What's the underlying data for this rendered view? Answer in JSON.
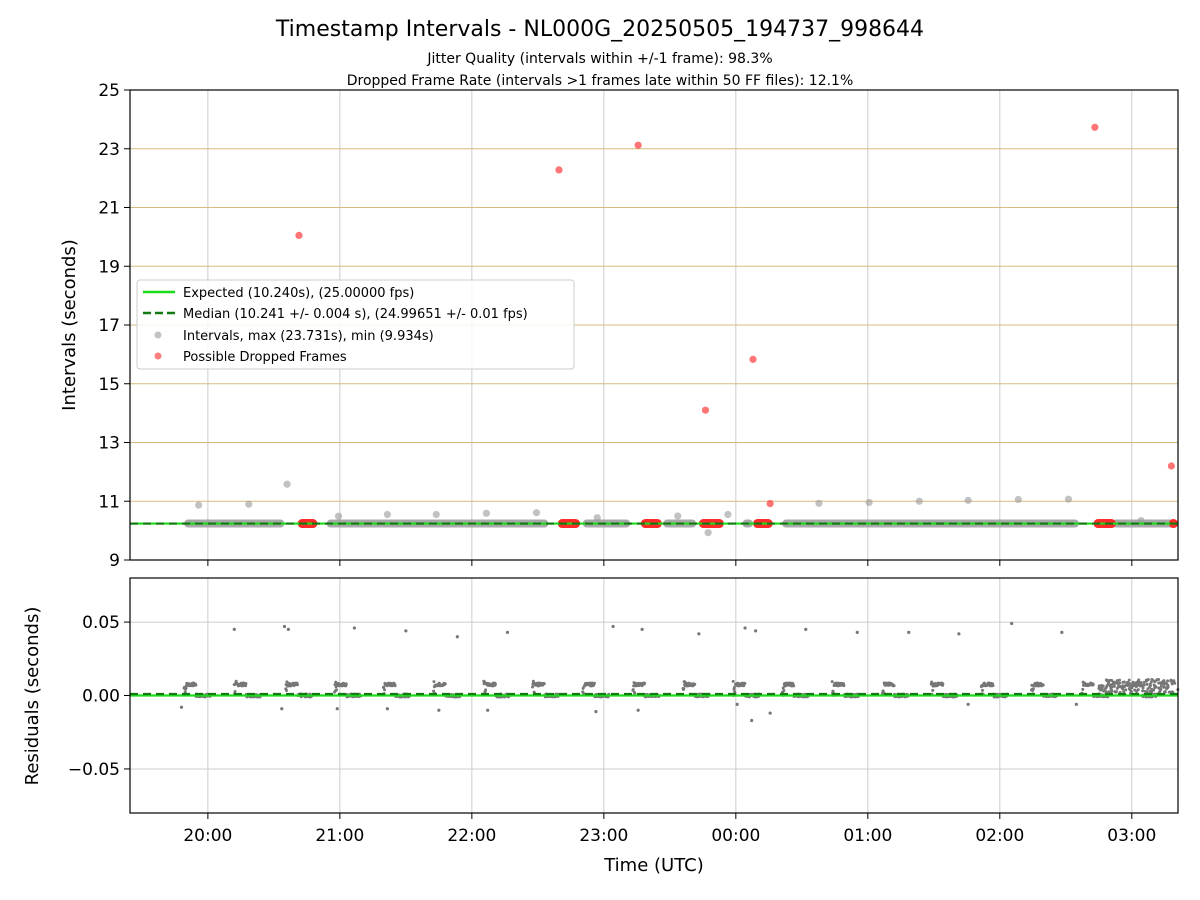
{
  "chart_data": [
    {
      "type": "scatter",
      "panel": "intervals",
      "title": "Timestamp Intervals - NL000G_20250505_194737_998644",
      "subtitle_lines": [
        "Jitter Quality (intervals within +/-1 frame): 98.3%",
        "Dropped Frame Rate (intervals >1 frames late within 50 FF files): 12.1%"
      ],
      "xlabel": "Time (UTC)",
      "ylabel": "Intervals (seconds)",
      "x_tick_labels": [
        "20:00",
        "21:00",
        "22:00",
        "23:00",
        "00:00",
        "01:00",
        "02:00",
        "03:00"
      ],
      "x_tick_hours": [
        20,
        21,
        22,
        23,
        24,
        25,
        26,
        27
      ],
      "xlim_hours": [
        19.41,
        27.35
      ],
      "ylim": [
        9,
        25
      ],
      "y_ticks": [
        9,
        11,
        13,
        15,
        17,
        19,
        21,
        23,
        25
      ],
      "grid": true,
      "legend_placement": "center-left",
      "legend": [
        "Expected (10.240s), (25.00000 fps)",
        "Median (10.241 +/- 0.004 s), (24.99651 +/- 0.01 fps)",
        "Intervals, max (23.731s), min (9.934s)",
        "Possible Dropped Frames"
      ],
      "expected": 10.24,
      "median": 10.241,
      "series": [
        {
          "name": "Intervals, max (23.731s), min (9.934s)",
          "color": "#999999",
          "baseline_segments_hours": [
            [
              19.82,
              20.58
            ],
            [
              20.9,
              22.58
            ],
            [
              22.84,
              23.2
            ],
            [
              23.45,
              23.7
            ],
            [
              24.05,
              24.13
            ],
            [
              24.35,
              26.6
            ],
            [
              26.85,
              27.35
            ]
          ],
          "baseline_value": 10.241,
          "outliers": [
            {
              "x": 19.93,
              "y": 10.87
            },
            {
              "x": 20.31,
              "y": 10.9
            },
            {
              "x": 20.6,
              "y": 11.58
            },
            {
              "x": 20.99,
              "y": 10.49
            },
            {
              "x": 21.36,
              "y": 10.55
            },
            {
              "x": 21.73,
              "y": 10.55
            },
            {
              "x": 22.11,
              "y": 10.59
            },
            {
              "x": 22.49,
              "y": 10.61
            },
            {
              "x": 22.95,
              "y": 10.44
            },
            {
              "x": 23.56,
              "y": 10.5
            },
            {
              "x": 23.79,
              "y": 9.93
            },
            {
              "x": 23.94,
              "y": 10.55
            },
            {
              "x": 24.63,
              "y": 10.93
            },
            {
              "x": 25.01,
              "y": 10.96
            },
            {
              "x": 25.39,
              "y": 11.0
            },
            {
              "x": 25.76,
              "y": 11.03
            },
            {
              "x": 26.14,
              "y": 11.06
            },
            {
              "x": 26.52,
              "y": 11.07
            },
            {
              "x": 27.07,
              "y": 10.34
            }
          ]
        },
        {
          "name": "Possible Dropped Frames",
          "color": "#ff2a2a",
          "clusters_hours": [
            [
              20.68,
              20.83
            ],
            [
              22.65,
              22.82
            ],
            [
              23.28,
              23.44
            ],
            [
              23.72,
              23.91
            ],
            [
              24.13,
              24.28
            ],
            [
              26.71,
              26.88
            ],
            [
              27.28,
              27.35
            ]
          ],
          "cluster_value": 10.241,
          "points": [
            {
              "x": 20.69,
              "y": 20.05
            },
            {
              "x": 22.66,
              "y": 22.28
            },
            {
              "x": 23.26,
              "y": 23.12
            },
            {
              "x": 23.77,
              "y": 14.1
            },
            {
              "x": 24.13,
              "y": 15.83
            },
            {
              "x": 24.26,
              "y": 10.92
            },
            {
              "x": 26.72,
              "y": 23.73
            },
            {
              "x": 27.3,
              "y": 12.2
            }
          ]
        }
      ]
    },
    {
      "type": "scatter",
      "panel": "residuals",
      "xlabel": "Time (UTC)",
      "ylabel": "Residuals (seconds)",
      "x_tick_labels": [
        "20:00",
        "21:00",
        "22:00",
        "23:00",
        "00:00",
        "01:00",
        "02:00",
        "03:00"
      ],
      "xlim_hours": [
        19.41,
        27.35
      ],
      "ylim": [
        -0.08,
        0.08
      ],
      "y_ticks": [
        -0.05,
        0.0,
        0.05
      ],
      "y_tick_labels": [
        "−0.05",
        "0.00",
        "0.05"
      ],
      "grid": true,
      "expected": 0.0,
      "median": 0.001,
      "series": [
        {
          "name": "Residuals",
          "color": "#777777",
          "cluster_starts_hours": [
            19.82,
            20.2,
            20.59,
            20.96,
            21.33,
            21.71,
            22.09,
            22.46,
            22.84,
            23.22,
            23.6,
            23.98,
            24.35,
            24.73,
            25.11,
            25.48,
            25.86,
            26.24,
            26.62,
            26.99
          ],
          "cluster_hours": 0.2,
          "high_value": 0.0075,
          "low_value": 0.0,
          "spikes": [
            {
              "x": 20.2,
              "y": 0.045
            },
            {
              "x": 20.58,
              "y": 0.047
            },
            {
              "x": 20.61,
              "y": 0.045
            },
            {
              "x": 21.11,
              "y": 0.046
            },
            {
              "x": 21.5,
              "y": 0.044
            },
            {
              "x": 21.89,
              "y": 0.04
            },
            {
              "x": 22.27,
              "y": 0.043
            },
            {
              "x": 23.07,
              "y": 0.047
            },
            {
              "x": 23.29,
              "y": 0.045
            },
            {
              "x": 23.72,
              "y": 0.042
            },
            {
              "x": 24.07,
              "y": 0.046
            },
            {
              "x": 24.15,
              "y": 0.044
            },
            {
              "x": 24.53,
              "y": 0.045
            },
            {
              "x": 24.92,
              "y": 0.043
            },
            {
              "x": 25.31,
              "y": 0.043
            },
            {
              "x": 25.69,
              "y": 0.042
            },
            {
              "x": 26.09,
              "y": 0.049
            },
            {
              "x": 26.47,
              "y": 0.043
            },
            {
              "x": 19.8,
              "y": -0.008
            },
            {
              "x": 20.56,
              "y": -0.009
            },
            {
              "x": 20.98,
              "y": -0.009
            },
            {
              "x": 21.36,
              "y": -0.009
            },
            {
              "x": 21.75,
              "y": -0.01
            },
            {
              "x": 22.12,
              "y": -0.01
            },
            {
              "x": 22.94,
              "y": -0.011
            },
            {
              "x": 23.26,
              "y": -0.01
            },
            {
              "x": 24.12,
              "y": -0.017
            },
            {
              "x": 24.26,
              "y": -0.012
            },
            {
              "x": 24.01,
              "y": -0.006
            },
            {
              "x": 25.76,
              "y": -0.006
            },
            {
              "x": 26.58,
              "y": -0.006
            }
          ]
        }
      ]
    }
  ],
  "colors": {
    "expected": "#1bdc1b",
    "median": "#117a11",
    "interval_points": "#999999",
    "dropped_points": "#ff2a2a",
    "residual_points": "#777777",
    "upper_grid": "#d6bc7c",
    "grid": "#cccccc"
  }
}
